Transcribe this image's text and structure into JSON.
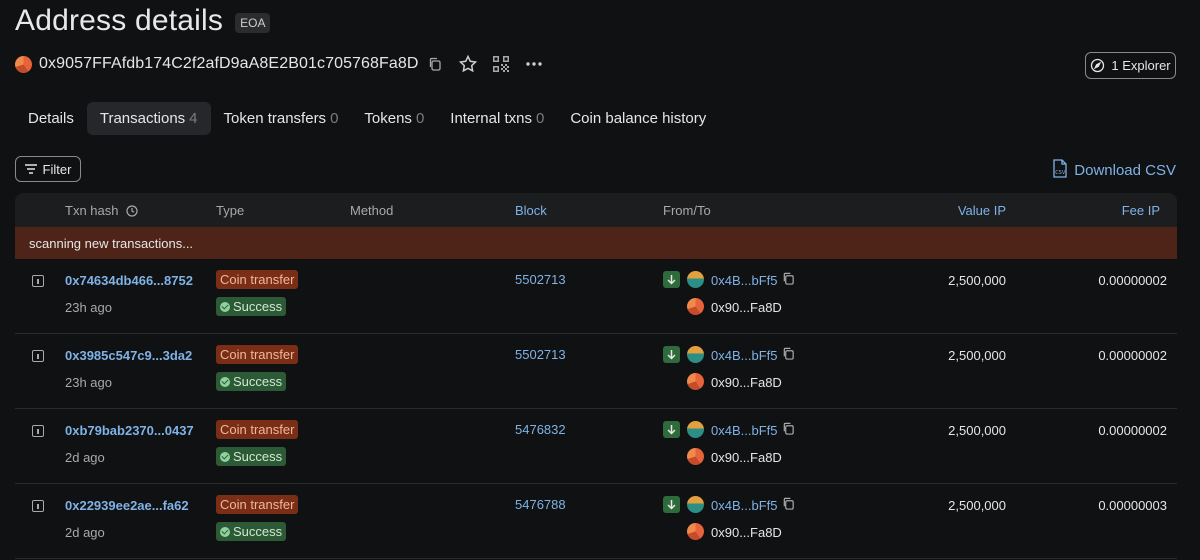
{
  "page": {
    "title": "Address details",
    "badge": "EOA"
  },
  "address": {
    "full": "0x9057FFAfdb174C2f2afD9aA8E2B01c705768Fa8D"
  },
  "explorer_button": {
    "label": "1 Explorer"
  },
  "tabs": [
    {
      "label": "Details",
      "count": ""
    },
    {
      "label": "Transactions",
      "count": "4"
    },
    {
      "label": "Token transfers",
      "count": "0"
    },
    {
      "label": "Tokens",
      "count": "0"
    },
    {
      "label": "Internal txns",
      "count": "0"
    },
    {
      "label": "Coin balance history",
      "count": ""
    }
  ],
  "filter": {
    "label": "Filter"
  },
  "download": {
    "label": "Download CSV"
  },
  "table": {
    "headers": {
      "txn_hash": "Txn hash",
      "type": "Type",
      "method": "Method",
      "block": "Block",
      "from_to": "From/To",
      "value": "Value IP",
      "fee": "Fee IP"
    },
    "scanning": "scanning new transactions...",
    "rows": [
      {
        "hash": "0x74634db466...8752",
        "age": "23h ago",
        "type": "Coin transfer",
        "status": "Success",
        "block": "5502713",
        "from": "0x4B...bFf5",
        "to": "0x90...Fa8D",
        "value": "2,500,000",
        "fee": "0.00000002"
      },
      {
        "hash": "0x3985c547c9...3da2",
        "age": "23h ago",
        "type": "Coin transfer",
        "status": "Success",
        "block": "5502713",
        "from": "0x4B...bFf5",
        "to": "0x90...Fa8D",
        "value": "2,500,000",
        "fee": "0.00000002"
      },
      {
        "hash": "0xb79bab2370...0437",
        "age": "2d ago",
        "type": "Coin transfer",
        "status": "Success",
        "block": "5476832",
        "from": "0x4B...bFf5",
        "to": "0x90...Fa8D",
        "value": "2,500,000",
        "fee": "0.00000002"
      },
      {
        "hash": "0x22939ee2ae...fa62",
        "age": "2d ago",
        "type": "Coin transfer",
        "status": "Success",
        "block": "5476788",
        "from": "0x4B...bFf5",
        "to": "0x90...Fa8D",
        "value": "2,500,000",
        "fee": "0.00000003"
      }
    ]
  },
  "colors": {
    "background": "#101112",
    "link": "#7fb2e6",
    "type_badge": "#7a2e16",
    "status_badge": "#2c5a36",
    "scanning_bar": "#4f2418"
  },
  "icons": [
    "copy-icon",
    "star-icon",
    "qr-code-icon",
    "more-icon",
    "compass-icon",
    "filter-icon",
    "csv-file-icon",
    "clock-icon",
    "info-icon",
    "arrow-down-icon",
    "check-icon"
  ]
}
